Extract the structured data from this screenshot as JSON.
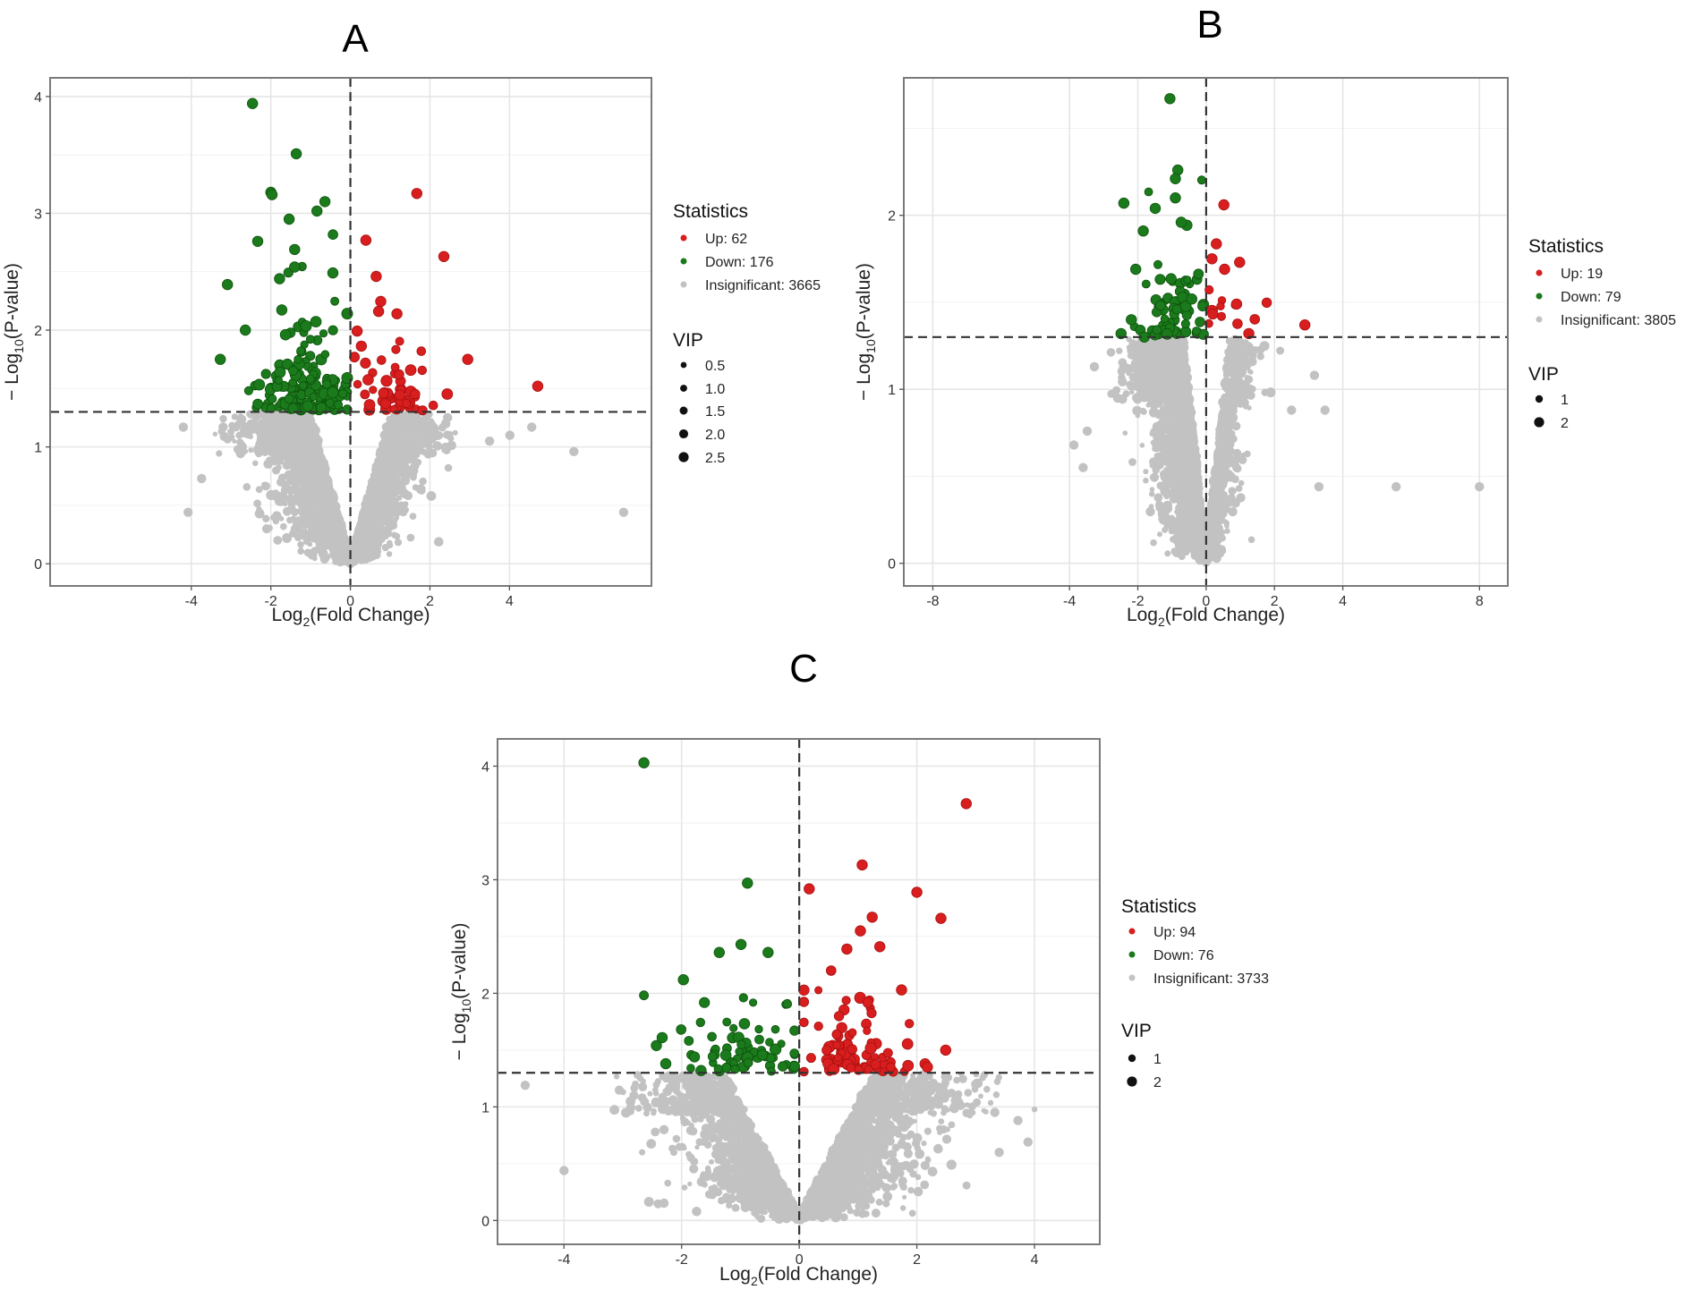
{
  "colors": {
    "up": "#d81e1e",
    "up_stroke": "#a80f0f",
    "down": "#1b7a1b",
    "down_stroke": "#0c520c",
    "insignificant": "#c2c2c2",
    "threshold_line": "#333333"
  },
  "chart_data": [
    {
      "type": "scatter",
      "title": "A",
      "xlabel": {
        "base": "Log",
        "sub": "2",
        "rest": "(Fold Change)"
      },
      "ylabel": {
        "base": "− Log",
        "sub": "10",
        "rest": "(P-value)"
      },
      "xlim": [
        -7.55,
        7.57
      ],
      "ylim": [
        -0.19,
        4.16
      ],
      "xticks": [
        -4,
        -2,
        0,
        2,
        4
      ],
      "yticks": [
        0,
        1,
        2,
        3,
        4
      ],
      "threshold_y": 1.3,
      "threshold_x": 0,
      "grid": true,
      "legend": {
        "stat_title": "Statistics",
        "items": [
          {
            "group": "up",
            "label": "Up: 62"
          },
          {
            "group": "down",
            "label": "Down: 176"
          },
          {
            "group": "insignificant",
            "label": "Insignificant: 3665"
          }
        ],
        "vip_title": "VIP",
        "vip_items": [
          {
            "label": "0.5",
            "value": 0.5
          },
          {
            "label": "1.0",
            "value": 1.0
          },
          {
            "label": "1.5",
            "value": 1.5
          },
          {
            "label": "2.0",
            "value": 2.0
          },
          {
            "label": "2.5",
            "value": 2.5
          }
        ],
        "placement": "right"
      },
      "counts": {
        "up": 62,
        "down": 176,
        "insignificant": 3665
      },
      "cloud": {
        "x_mean": -0.25,
        "x_sd": 0.95,
        "slope": 1.25,
        "down_center": -1.1,
        "up_center": 1.1
      },
      "highlighted_points": [
        {
          "x": -2.46,
          "y": 3.94,
          "group": "down"
        },
        {
          "x": -1.36,
          "y": 3.51,
          "group": "down"
        },
        {
          "x": -2.0,
          "y": 3.18,
          "group": "down"
        },
        {
          "x": -1.97,
          "y": 3.16,
          "group": "down"
        },
        {
          "x": -0.64,
          "y": 3.1,
          "group": "down"
        },
        {
          "x": -0.84,
          "y": 3.02,
          "group": "down"
        },
        {
          "x": -1.54,
          "y": 2.95,
          "group": "down"
        },
        {
          "x": -2.33,
          "y": 2.76,
          "group": "down"
        },
        {
          "x": -1.4,
          "y": 2.69,
          "group": "down"
        },
        {
          "x": -3.09,
          "y": 2.39,
          "group": "down"
        },
        {
          "x": -0.44,
          "y": 2.49,
          "group": "down"
        },
        {
          "x": -3.27,
          "y": 1.75,
          "group": "down"
        },
        {
          "x": -2.64,
          "y": 2.0,
          "group": "down"
        },
        {
          "x": -1.78,
          "y": 2.44,
          "group": "down"
        },
        {
          "x": -1.4,
          "y": 2.54,
          "group": "down"
        },
        {
          "x": 1.67,
          "y": 3.17,
          "group": "up"
        },
        {
          "x": 2.35,
          "y": 2.63,
          "group": "up"
        },
        {
          "x": 0.39,
          "y": 2.77,
          "group": "up"
        },
        {
          "x": 0.65,
          "y": 2.46,
          "group": "up"
        },
        {
          "x": 4.71,
          "y": 1.52,
          "group": "up"
        },
        {
          "x": 2.95,
          "y": 1.75,
          "group": "up"
        },
        {
          "x": 0.71,
          "y": 2.16,
          "group": "up"
        },
        {
          "x": 1.17,
          "y": 2.14,
          "group": "up"
        },
        {
          "x": -4.2,
          "y": 1.17,
          "group": "insignificant"
        },
        {
          "x": -3.74,
          "y": 0.73,
          "group": "insignificant"
        },
        {
          "x": 5.62,
          "y": 0.96,
          "group": "insignificant"
        },
        {
          "x": 6.87,
          "y": 0.44,
          "group": "insignificant"
        },
        {
          "x": -4.08,
          "y": 0.44,
          "group": "insignificant"
        },
        {
          "x": 4.56,
          "y": 1.17,
          "group": "insignificant"
        },
        {
          "x": 4.01,
          "y": 1.1,
          "group": "insignificant"
        },
        {
          "x": -3.2,
          "y": 1.17,
          "group": "insignificant"
        },
        {
          "x": 3.5,
          "y": 1.05,
          "group": "insignificant"
        }
      ]
    },
    {
      "type": "scatter",
      "title": "B",
      "xlabel": {
        "base": "Log",
        "sub": "2",
        "rest": "(Fold Change)"
      },
      "ylabel": {
        "base": "− Log",
        "sub": "10",
        "rest": "(P-value)"
      },
      "xlim": [
        -8.85,
        8.83
      ],
      "ylim": [
        -0.13,
        2.79
      ],
      "xticks": [
        -8,
        -4,
        -2,
        0,
        2,
        4,
        8
      ],
      "yticks": [
        0,
        1,
        2
      ],
      "threshold_y": 1.3,
      "threshold_x": 0,
      "grid": true,
      "legend": {
        "stat_title": "Statistics",
        "items": [
          {
            "group": "up",
            "label": "Up: 19"
          },
          {
            "group": "down",
            "label": "Down: 79"
          },
          {
            "group": "insignificant",
            "label": "Insignificant: 3805"
          }
        ],
        "vip_title": "VIP",
        "vip_items": [
          {
            "label": "1",
            "value": 1
          },
          {
            "label": "2",
            "value": 2
          }
        ],
        "placement": "right"
      },
      "counts": {
        "up": 19,
        "down": 79,
        "insignificant": 3805
      },
      "cloud": {
        "x_mean": -0.45,
        "x_sd": 0.7,
        "slope": 1.9,
        "down_center": -0.9,
        "up_center": 0.5
      },
      "highlighted_points": [
        {
          "x": -1.06,
          "y": 2.67,
          "group": "down"
        },
        {
          "x": -0.83,
          "y": 2.26,
          "group": "down"
        },
        {
          "x": -0.9,
          "y": 2.21,
          "group": "down"
        },
        {
          "x": -0.9,
          "y": 2.1,
          "group": "down"
        },
        {
          "x": -2.41,
          "y": 2.07,
          "group": "down"
        },
        {
          "x": -1.49,
          "y": 2.04,
          "group": "down"
        },
        {
          "x": -1.84,
          "y": 1.91,
          "group": "down"
        },
        {
          "x": -0.73,
          "y": 1.96,
          "group": "down"
        },
        {
          "x": -2.06,
          "y": 1.69,
          "group": "down"
        },
        {
          "x": -2.49,
          "y": 1.32,
          "group": "down"
        },
        {
          "x": -1.81,
          "y": 1.3,
          "group": "down"
        },
        {
          "x": -2.19,
          "y": 1.4,
          "group": "down"
        },
        {
          "x": 0.52,
          "y": 2.06,
          "group": "up"
        },
        {
          "x": 0.98,
          "y": 1.73,
          "group": "up"
        },
        {
          "x": 0.17,
          "y": 1.75,
          "group": "up"
        },
        {
          "x": 0.54,
          "y": 1.69,
          "group": "up"
        },
        {
          "x": 2.89,
          "y": 1.37,
          "group": "up"
        },
        {
          "x": 1.25,
          "y": 1.32,
          "group": "up"
        },
        {
          "x": 0.89,
          "y": 1.49,
          "group": "up"
        },
        {
          "x": 8.0,
          "y": 0.44,
          "group": "insignificant"
        },
        {
          "x": 5.56,
          "y": 0.44,
          "group": "insignificant"
        },
        {
          "x": 3.3,
          "y": 0.44,
          "group": "insignificant"
        },
        {
          "x": 3.48,
          "y": 0.88,
          "group": "insignificant"
        },
        {
          "x": 3.17,
          "y": 1.08,
          "group": "insignificant"
        },
        {
          "x": -3.87,
          "y": 0.68,
          "group": "insignificant"
        },
        {
          "x": -3.48,
          "y": 0.76,
          "group": "insignificant"
        },
        {
          "x": -3.27,
          "y": 1.13,
          "group": "insignificant"
        },
        {
          "x": -3.6,
          "y": 0.55,
          "group": "insignificant"
        },
        {
          "x": 2.5,
          "y": 0.88,
          "group": "insignificant"
        }
      ]
    },
    {
      "type": "scatter",
      "title": "C",
      "xlabel": {
        "base": "Log",
        "sub": "2",
        "rest": "(Fold Change)"
      },
      "ylabel": {
        "base": "− Log",
        "sub": "10",
        "rest": "(P-value)"
      },
      "xlim": [
        -5.13,
        5.11
      ],
      "ylim": [
        -0.21,
        4.24
      ],
      "xticks": [
        -4,
        -2,
        0,
        2,
        4
      ],
      "yticks": [
        0,
        1,
        2,
        3,
        4
      ],
      "threshold_y": 1.3,
      "threshold_x": 0,
      "grid": true,
      "legend": {
        "stat_title": "Statistics",
        "items": [
          {
            "group": "up",
            "label": "Up: 94"
          },
          {
            "group": "down",
            "label": "Down: 76"
          },
          {
            "group": "insignificant",
            "label": "Insignificant: 3733"
          }
        ],
        "vip_title": "VIP",
        "vip_items": [
          {
            "label": "1",
            "value": 1
          },
          {
            "label": "2",
            "value": 2
          }
        ],
        "placement": "right"
      },
      "counts": {
        "up": 94,
        "down": 76,
        "insignificant": 3733
      },
      "cloud": {
        "x_mean": 0.1,
        "x_sd": 1.05,
        "slope": 1.0,
        "down_center": -1.0,
        "up_center": 1.0
      },
      "highlighted_points": [
        {
          "x": -2.64,
          "y": 4.03,
          "group": "down"
        },
        {
          "x": -0.88,
          "y": 2.97,
          "group": "down"
        },
        {
          "x": -1.97,
          "y": 2.12,
          "group": "down"
        },
        {
          "x": -0.99,
          "y": 2.43,
          "group": "down"
        },
        {
          "x": -0.53,
          "y": 2.36,
          "group": "down"
        },
        {
          "x": -1.36,
          "y": 2.36,
          "group": "down"
        },
        {
          "x": -2.43,
          "y": 1.54,
          "group": "down"
        },
        {
          "x": -2.33,
          "y": 1.61,
          "group": "down"
        },
        {
          "x": -2.27,
          "y": 1.38,
          "group": "down"
        },
        {
          "x": -1.67,
          "y": 1.32,
          "group": "down"
        },
        {
          "x": 2.84,
          "y": 3.67,
          "group": "up"
        },
        {
          "x": 1.07,
          "y": 3.13,
          "group": "up"
        },
        {
          "x": 0.17,
          "y": 2.92,
          "group": "up"
        },
        {
          "x": 2.0,
          "y": 2.89,
          "group": "up"
        },
        {
          "x": 2.41,
          "y": 2.66,
          "group": "up"
        },
        {
          "x": 1.24,
          "y": 2.67,
          "group": "up"
        },
        {
          "x": 1.04,
          "y": 2.55,
          "group": "up"
        },
        {
          "x": 1.37,
          "y": 2.41,
          "group": "up"
        },
        {
          "x": 0.81,
          "y": 2.39,
          "group": "up"
        },
        {
          "x": 1.74,
          "y": 2.03,
          "group": "up"
        },
        {
          "x": 2.49,
          "y": 1.5,
          "group": "up"
        },
        {
          "x": 2.18,
          "y": 1.35,
          "group": "up"
        },
        {
          "x": -4.66,
          "y": 1.19,
          "group": "insignificant"
        },
        {
          "x": -2.81,
          "y": 1.1,
          "group": "insignificant"
        },
        {
          "x": -4.0,
          "y": 0.44,
          "group": "insignificant"
        },
        {
          "x": 3.89,
          "y": 0.69,
          "group": "insignificant"
        },
        {
          "x": 3.72,
          "y": 0.88,
          "group": "insignificant"
        },
        {
          "x": 3.0,
          "y": 1.2,
          "group": "insignificant"
        },
        {
          "x": 3.4,
          "y": 0.6,
          "group": "insignificant"
        },
        {
          "x": -2.3,
          "y": 0.8,
          "group": "insignificant"
        }
      ]
    }
  ]
}
